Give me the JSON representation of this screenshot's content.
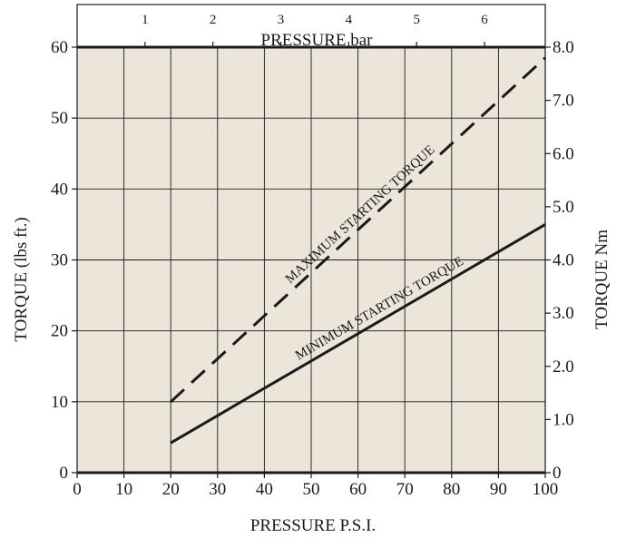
{
  "chart_data": {
    "type": "line",
    "xlabel": "PRESSURE P.S.I.",
    "ylabel": "TORQUE (lbs ft.)",
    "x2label": "PRESSURE bar",
    "y2label": "TORQUE Nm",
    "xlim": [
      0,
      100
    ],
    "ylim": [
      0,
      60
    ],
    "x_ticks": [
      0,
      10,
      20,
      30,
      40,
      50,
      60,
      70,
      80,
      90,
      100
    ],
    "y_ticks": [
      0,
      10,
      20,
      30,
      40,
      50,
      60
    ],
    "x2_ticks": [
      {
        "value": 1,
        "label": "1"
      },
      {
        "value": 2,
        "label": "2"
      },
      {
        "value": 3,
        "label": "3"
      },
      {
        "value": 4,
        "label": "4"
      },
      {
        "value": 5,
        "label": "5"
      },
      {
        "value": 6,
        "label": "6"
      }
    ],
    "y2_ticks": [
      {
        "value": 0,
        "label": "0"
      },
      {
        "value": 1,
        "label": "1.0"
      },
      {
        "value": 2,
        "label": "2.0"
      },
      {
        "value": 3,
        "label": "3.0"
      },
      {
        "value": 4,
        "label": "4.0"
      },
      {
        "value": 5,
        "label": "5.0"
      },
      {
        "value": 6,
        "label": "6.0"
      },
      {
        "value": 7,
        "label": "7.0"
      },
      {
        "value": 8,
        "label": "8.0"
      }
    ],
    "grid": true,
    "series": [
      {
        "name": "MAXIMUM STARTING TORQUE",
        "style": "dashed",
        "x": [
          20,
          100
        ],
        "y": [
          10,
          58.5
        ]
      },
      {
        "name": "MINIMUM STARTING TORQUE",
        "style": "solid",
        "x": [
          20,
          100
        ],
        "y": [
          4.2,
          35
        ]
      }
    ],
    "colors": {
      "plot_background": "#ebe6d9",
      "line": "#1a1a1a",
      "grid": "#1a1a1a"
    }
  }
}
